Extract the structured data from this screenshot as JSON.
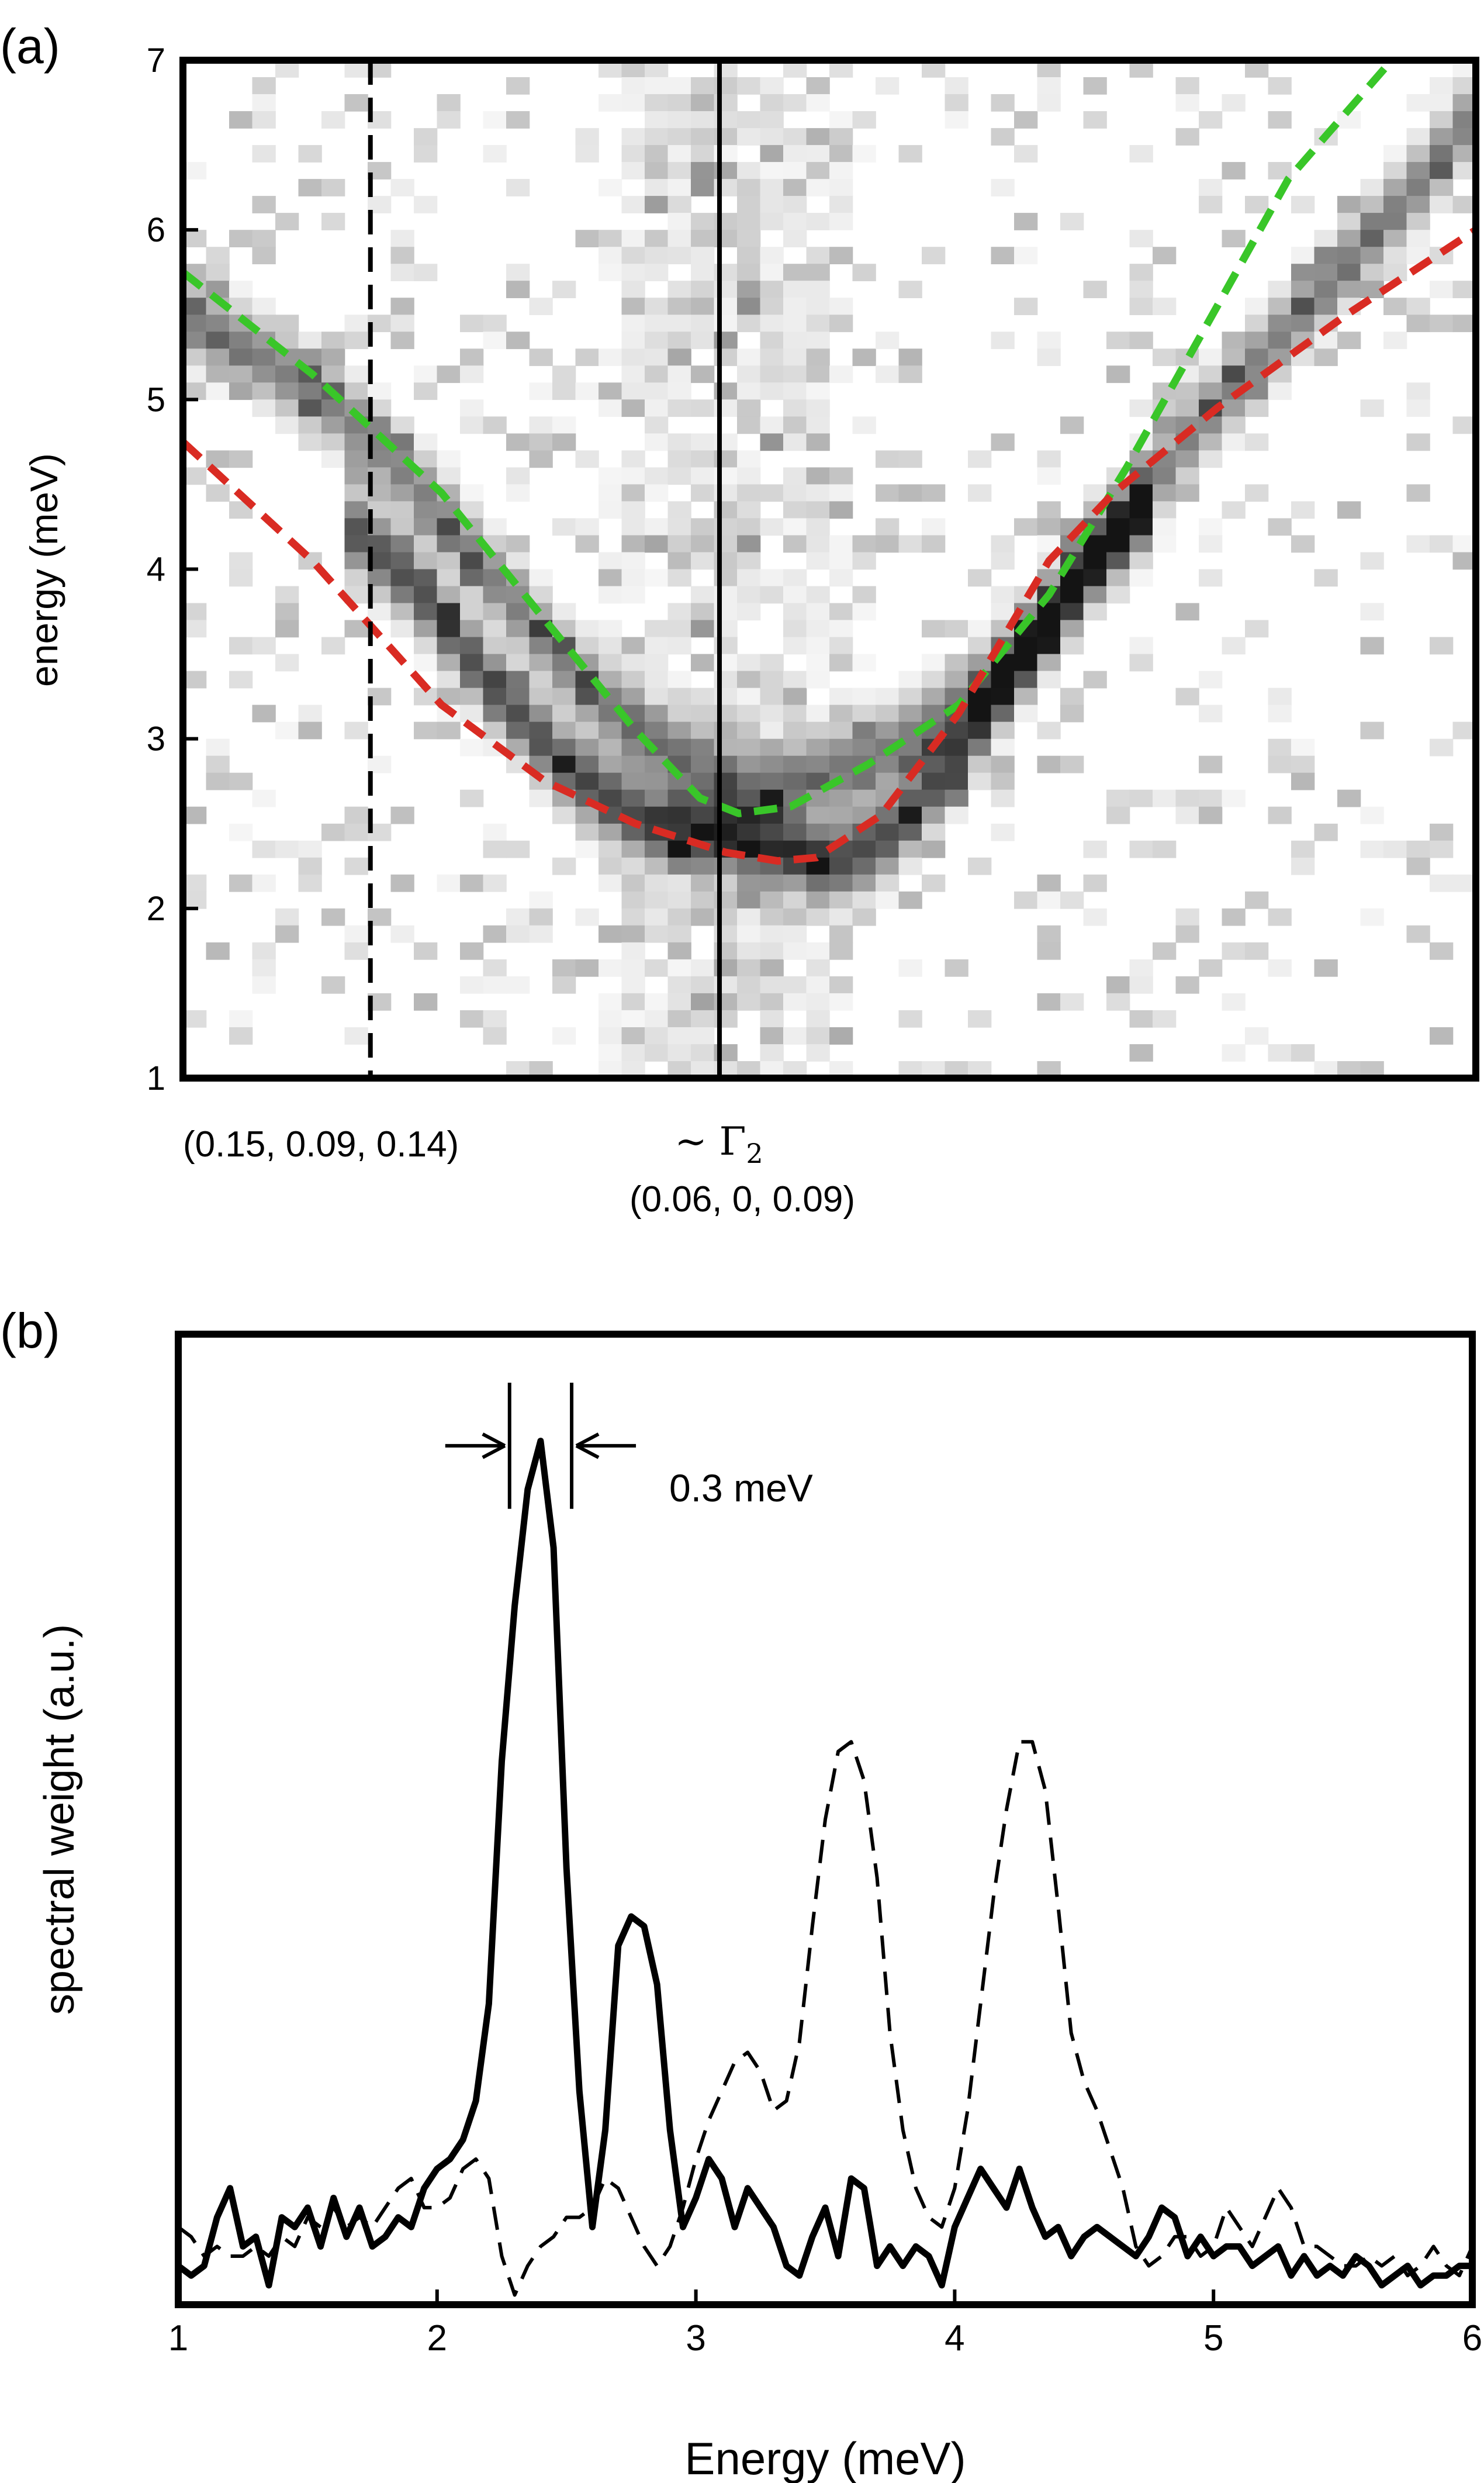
{
  "chart_data": [
    {
      "panel_label": "(a)",
      "type": "heatmap",
      "title": "",
      "xlabel": "",
      "ylabel": "energy (meV)",
      "ylim": [
        1,
        7
      ],
      "y_ticks": [
        1,
        2,
        3,
        4,
        5,
        6,
        7
      ],
      "colormap": "white-to-black (grayscale intensity)",
      "grid_cells": {
        "columns": 56,
        "rows": 60,
        "noise_seed": 7
      },
      "marker_lines": [
        {
          "style": "dashed",
          "color": "#000000",
          "position_fraction": 0.145,
          "label": "(0.15, 0.09, 0.14)"
        },
        {
          "style": "solid",
          "color": "#000000",
          "position_fraction": 0.415,
          "label_symbol": "~ Γ",
          "label_subscript": "2",
          "label": "(0.06, 0, 0.09)"
        }
      ],
      "series": [
        {
          "name": "upper mode (fit)",
          "style": "dashed",
          "color": "#39c629",
          "points": [
            [
              0.0,
              5.75
            ],
            [
              0.1,
              5.15
            ],
            [
              0.2,
              4.45
            ],
            [
              0.28,
              3.7
            ],
            [
              0.35,
              3.05
            ],
            [
              0.4,
              2.65
            ],
            [
              0.43,
              2.56
            ],
            [
              0.47,
              2.6
            ],
            [
              0.53,
              2.85
            ],
            [
              0.6,
              3.2
            ],
            [
              0.67,
              3.85
            ],
            [
              0.73,
              4.6
            ],
            [
              0.8,
              5.55
            ],
            [
              0.855,
              6.3
            ],
            [
              0.935,
              7.0
            ]
          ]
        },
        {
          "name": "lower mode (fit)",
          "style": "dashed",
          "color": "#d92b23",
          "points": [
            [
              0.0,
              4.75
            ],
            [
              0.1,
              4.05
            ],
            [
              0.2,
              3.2
            ],
            [
              0.28,
              2.75
            ],
            [
              0.35,
              2.5
            ],
            [
              0.42,
              2.33
            ],
            [
              0.46,
              2.28
            ],
            [
              0.49,
              2.3
            ],
            [
              0.54,
              2.55
            ],
            [
              0.6,
              3.15
            ],
            [
              0.67,
              4.05
            ],
            [
              0.72,
              4.45
            ],
            [
              0.8,
              4.95
            ],
            [
              0.9,
              5.5
            ],
            [
              1.0,
              6.0
            ]
          ]
        }
      ],
      "intensity_ridges": [
        {
          "name": "upper band",
          "points": [
            [
              0.0,
              5.5
            ],
            [
              0.06,
              5.25
            ],
            [
              0.12,
              4.95
            ],
            [
              0.18,
              4.5
            ],
            [
              0.25,
              3.85
            ],
            [
              0.3,
              3.4
            ],
            [
              0.36,
              3.0
            ],
            [
              0.41,
              2.75
            ],
            [
              0.45,
              2.72
            ],
            [
              0.5,
              2.8
            ],
            [
              0.55,
              2.95
            ],
            [
              0.6,
              3.2
            ],
            [
              0.66,
              3.6
            ],
            [
              0.72,
              4.2
            ],
            [
              0.78,
              4.8
            ],
            [
              0.84,
              5.3
            ],
            [
              0.9,
              5.8
            ],
            [
              0.96,
              6.3
            ],
            [
              1.0,
              6.7
            ]
          ]
        },
        {
          "name": "lower band",
          "points": [
            [
              0.12,
              4.3
            ],
            [
              0.18,
              3.9
            ],
            [
              0.24,
              3.3
            ],
            [
              0.3,
              2.8
            ],
            [
              0.36,
              2.5
            ],
            [
              0.4,
              2.42
            ],
            [
              0.45,
              2.38
            ],
            [
              0.5,
              2.25
            ],
            [
              0.55,
              2.45
            ],
            [
              0.6,
              2.9
            ],
            [
              0.65,
              3.5
            ],
            [
              0.7,
              4.05
            ],
            [
              0.75,
              4.4
            ]
          ]
        }
      ]
    },
    {
      "panel_label": "(b)",
      "type": "line",
      "title": "",
      "xlabel": "Energy (meV)",
      "ylabel": "spectral weight (a.u.)",
      "xlim": [
        1,
        6
      ],
      "ylim": [
        0,
        1
      ],
      "x_ticks": [
        1,
        2,
        3,
        4,
        5,
        6
      ],
      "annotation": {
        "text": "0.3 meV",
        "x_left": 2.28,
        "x_right": 2.52,
        "y_bottom": 0.82,
        "y_top": 0.95,
        "arrow_y": 0.885
      },
      "series": [
        {
          "name": "solid",
          "style": "solid",
          "color": "#000000",
          "x": [
            1.0,
            1.05,
            1.1,
            1.15,
            1.2,
            1.25,
            1.3,
            1.35,
            1.4,
            1.45,
            1.5,
            1.55,
            1.6,
            1.65,
            1.7,
            1.75,
            1.8,
            1.85,
            1.9,
            1.95,
            2.0,
            2.05,
            2.1,
            2.15,
            2.2,
            2.25,
            2.3,
            2.35,
            2.4,
            2.45,
            2.5,
            2.55,
            2.6,
            2.65,
            2.7,
            2.75,
            2.8,
            2.85,
            2.9,
            2.95,
            3.0,
            3.05,
            3.1,
            3.15,
            3.2,
            3.25,
            3.3,
            3.35,
            3.4,
            3.45,
            3.5,
            3.55,
            3.6,
            3.65,
            3.7,
            3.75,
            3.8,
            3.85,
            3.9,
            3.95,
            4.0,
            4.05,
            4.1,
            4.15,
            4.2,
            4.25,
            4.3,
            4.35,
            4.4,
            4.45,
            4.5,
            4.55,
            4.6,
            4.65,
            4.7,
            4.75,
            4.8,
            4.85,
            4.9,
            4.95,
            5.0,
            5.05,
            5.1,
            5.15,
            5.2,
            5.25,
            5.3,
            5.35,
            5.4,
            5.45,
            5.5,
            5.55,
            5.6,
            5.65,
            5.7,
            5.75,
            5.8,
            5.85,
            5.9,
            5.95,
            6.0
          ],
          "y": [
            0.04,
            0.03,
            0.04,
            0.09,
            0.12,
            0.06,
            0.07,
            0.02,
            0.09,
            0.08,
            0.1,
            0.06,
            0.11,
            0.07,
            0.1,
            0.06,
            0.07,
            0.09,
            0.08,
            0.12,
            0.14,
            0.15,
            0.17,
            0.21,
            0.31,
            0.56,
            0.72,
            0.84,
            0.89,
            0.78,
            0.45,
            0.22,
            0.08,
            0.18,
            0.37,
            0.4,
            0.39,
            0.33,
            0.18,
            0.08,
            0.11,
            0.15,
            0.13,
            0.08,
            0.12,
            0.1,
            0.08,
            0.04,
            0.03,
            0.07,
            0.1,
            0.05,
            0.13,
            0.12,
            0.04,
            0.06,
            0.04,
            0.06,
            0.05,
            0.02,
            0.08,
            0.11,
            0.14,
            0.12,
            0.1,
            0.14,
            0.1,
            0.07,
            0.08,
            0.05,
            0.07,
            0.08,
            0.07,
            0.06,
            0.05,
            0.07,
            0.1,
            0.09,
            0.05,
            0.07,
            0.05,
            0.06,
            0.06,
            0.04,
            0.05,
            0.06,
            0.03,
            0.05,
            0.03,
            0.04,
            0.03,
            0.05,
            0.04,
            0.02,
            0.03,
            0.04,
            0.02,
            0.03,
            0.03,
            0.04,
            0.04
          ]
        },
        {
          "name": "dashed",
          "style": "dashed",
          "color": "#000000",
          "x": [
            1.0,
            1.05,
            1.1,
            1.15,
            1.2,
            1.25,
            1.3,
            1.35,
            1.4,
            1.45,
            1.5,
            1.55,
            1.6,
            1.65,
            1.7,
            1.75,
            1.8,
            1.85,
            1.9,
            1.95,
            2.0,
            2.05,
            2.1,
            2.15,
            2.2,
            2.25,
            2.3,
            2.35,
            2.4,
            2.45,
            2.5,
            2.55,
            2.6,
            2.65,
            2.7,
            2.75,
            2.8,
            2.85,
            2.9,
            2.95,
            3.0,
            3.05,
            3.1,
            3.15,
            3.2,
            3.25,
            3.3,
            3.35,
            3.4,
            3.45,
            3.5,
            3.55,
            3.6,
            3.65,
            3.7,
            3.75,
            3.8,
            3.85,
            3.9,
            3.95,
            4.0,
            4.05,
            4.1,
            4.15,
            4.2,
            4.25,
            4.3,
            4.35,
            4.4,
            4.45,
            4.5,
            4.55,
            4.6,
            4.65,
            4.7,
            4.75,
            4.8,
            4.85,
            4.9,
            4.95,
            5.0,
            5.05,
            5.1,
            5.15,
            5.2,
            5.25,
            5.3,
            5.35,
            5.4,
            5.45,
            5.5,
            5.55,
            5.6,
            5.65,
            5.7,
            5.75,
            5.8,
            5.85,
            5.9,
            5.95,
            6.0
          ],
          "y": [
            0.08,
            0.07,
            0.05,
            0.06,
            0.05,
            0.05,
            0.06,
            0.05,
            0.07,
            0.06,
            0.09,
            0.08,
            0.1,
            0.08,
            0.09,
            0.08,
            0.1,
            0.12,
            0.13,
            0.1,
            0.1,
            0.11,
            0.14,
            0.15,
            0.13,
            0.05,
            0.01,
            0.04,
            0.06,
            0.07,
            0.09,
            0.09,
            0.1,
            0.13,
            0.12,
            0.09,
            0.06,
            0.04,
            0.06,
            0.1,
            0.15,
            0.19,
            0.22,
            0.25,
            0.26,
            0.24,
            0.2,
            0.21,
            0.27,
            0.39,
            0.5,
            0.57,
            0.58,
            0.54,
            0.44,
            0.28,
            0.18,
            0.12,
            0.09,
            0.08,
            0.12,
            0.2,
            0.31,
            0.42,
            0.51,
            0.58,
            0.58,
            0.53,
            0.41,
            0.28,
            0.23,
            0.2,
            0.16,
            0.12,
            0.06,
            0.04,
            0.05,
            0.07,
            0.07,
            0.05,
            0.06,
            0.1,
            0.08,
            0.06,
            0.09,
            0.12,
            0.1,
            0.06,
            0.06,
            0.05,
            0.04,
            0.04,
            0.05,
            0.04,
            0.05,
            0.03,
            0.04,
            0.06,
            0.04,
            0.03,
            0.06
          ]
        }
      ]
    }
  ]
}
